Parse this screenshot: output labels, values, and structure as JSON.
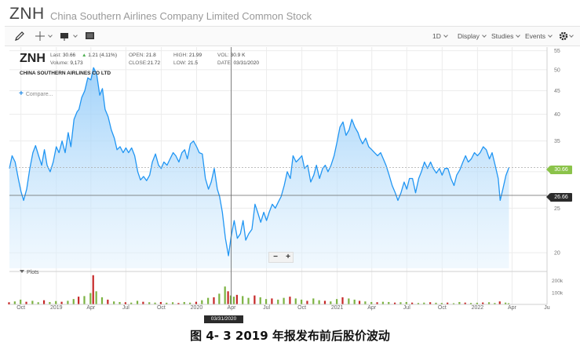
{
  "header": {
    "ticker": "ZNH",
    "company_full": "China Southern Airlines Company Limited Common Stock"
  },
  "toolbar": {
    "draw_icon": "pencil-icon",
    "crosshair_icon": "crosshair-icon",
    "chart_style_icon": "candle-chart-icon",
    "fullscreen_icon": "square-icon",
    "range": "1D",
    "display": "Display",
    "studies": "Studies",
    "events": "Events",
    "settings_icon": "gear-icon"
  },
  "quote": {
    "ticker": "ZNH",
    "company": "CHINA SOUTHERN AIRLINES CO LTD",
    "last_label": "Last:",
    "last_value": "30.66",
    "change": "1.21 (4.11%)",
    "volume_label": "Volume:",
    "volume_value": "9,173",
    "open_label": "OPEN:",
    "open_value": "21.8",
    "close_label": "CLOSE:",
    "close_value": "21.72",
    "high_label": "HIGH:",
    "high_value": "21.99",
    "low_label": "LOW:",
    "low_value": "21.5",
    "vol_label": "VOL:",
    "vol_value": "30.9 K",
    "date_label": "DATE:",
    "date_value": "03/31/2020",
    "change_color": "#4caf50"
  },
  "compare_label": "Compare...",
  "zoom": {
    "minus": "−",
    "plus": "+"
  },
  "plots_label": "Plots",
  "last_price_tag": "30.66",
  "cursor_price_tag": "26.66",
  "cursor_date_flag": "03/31/2020",
  "caption": "图 4- 3 2019 年报发布前后股价波动",
  "colors": {
    "line": "#2196f3",
    "area_top": "#bbdefb",
    "volume_up": "#7cb342",
    "volume_down": "#c62828",
    "last_tag": "#8bc34a"
  },
  "chart_data": {
    "type": "area",
    "y_scale": "log",
    "y_ticks": [
      20,
      25,
      30,
      35,
      40,
      45,
      50,
      55
    ],
    "ylim": [
      18.5,
      56
    ],
    "x_ticks": [
      {
        "date": "2018-10-01",
        "label": "Oct"
      },
      {
        "date": "2019-01-01",
        "label": "2019"
      },
      {
        "date": "2019-04-01",
        "label": "Apr"
      },
      {
        "date": "2019-07-01",
        "label": "Jul"
      },
      {
        "date": "2019-10-01",
        "label": "Oct"
      },
      {
        "date": "2020-01-01",
        "label": "2020"
      },
      {
        "date": "2020-04-01",
        "label": "Apr"
      },
      {
        "date": "2020-07-01",
        "label": "Jul"
      },
      {
        "date": "2020-10-01",
        "label": "Oct"
      },
      {
        "date": "2021-01-01",
        "label": "2021"
      },
      {
        "date": "2021-04-01",
        "label": "Apr"
      },
      {
        "date": "2021-07-01",
        "label": "Jul"
      },
      {
        "date": "2021-10-01",
        "label": "Oct"
      },
      {
        "date": "2022-01-01",
        "label": "2022"
      },
      {
        "date": "2022-04-01",
        "label": "Apr"
      },
      {
        "date": "2022-07-01",
        "label": "Ju"
      }
    ],
    "xlim": [
      "2018-09-01",
      "2022-07-01"
    ],
    "series": [
      {
        "points": [
          [
            "2018-09-01",
            30.5
          ],
          [
            "2018-09-08",
            32.5
          ],
          [
            "2018-09-16",
            31.5
          ],
          [
            "2018-09-24",
            29
          ],
          [
            "2018-10-01",
            27.2
          ],
          [
            "2018-10-08",
            26
          ],
          [
            "2018-10-16",
            27.5
          ],
          [
            "2018-10-24",
            30.5
          ],
          [
            "2018-11-01",
            33
          ],
          [
            "2018-11-08",
            34.2
          ],
          [
            "2018-11-16",
            32.5
          ],
          [
            "2018-11-24",
            31
          ],
          [
            "2018-12-01",
            33.5
          ],
          [
            "2018-12-08",
            31
          ],
          [
            "2018-12-16",
            30
          ],
          [
            "2018-12-24",
            31.5
          ],
          [
            "2019-01-01",
            34
          ],
          [
            "2019-01-08",
            33
          ],
          [
            "2019-01-16",
            35
          ],
          [
            "2019-01-24",
            33
          ],
          [
            "2019-02-01",
            36.5
          ],
          [
            "2019-02-08",
            34
          ],
          [
            "2019-02-16",
            39
          ],
          [
            "2019-02-24",
            40.5
          ],
          [
            "2019-03-01",
            41
          ],
          [
            "2019-03-08",
            43.5
          ],
          [
            "2019-03-16",
            45
          ],
          [
            "2019-03-24",
            48
          ],
          [
            "2019-04-01",
            47.5
          ],
          [
            "2019-04-08",
            50.5
          ],
          [
            "2019-04-16",
            49
          ],
          [
            "2019-04-24",
            44
          ],
          [
            "2019-05-01",
            45.5
          ],
          [
            "2019-05-08",
            41
          ],
          [
            "2019-05-16",
            39.5
          ],
          [
            "2019-05-24",
            37
          ],
          [
            "2019-06-01",
            35.5
          ],
          [
            "2019-06-08",
            33.5
          ],
          [
            "2019-06-16",
            34
          ],
          [
            "2019-06-24",
            33
          ],
          [
            "2019-07-01",
            33.8
          ],
          [
            "2019-07-08",
            33
          ],
          [
            "2019-07-16",
            33.8
          ],
          [
            "2019-07-24",
            32.5
          ],
          [
            "2019-08-01",
            30
          ],
          [
            "2019-08-08",
            28.8
          ],
          [
            "2019-08-16",
            29.3
          ],
          [
            "2019-08-24",
            28.7
          ],
          [
            "2019-09-01",
            29.5
          ],
          [
            "2019-09-08",
            31.5
          ],
          [
            "2019-09-16",
            32.8
          ],
          [
            "2019-09-24",
            31
          ],
          [
            "2019-10-01",
            30.5
          ],
          [
            "2019-10-08",
            31.5
          ],
          [
            "2019-10-16",
            31
          ],
          [
            "2019-10-24",
            32
          ],
          [
            "2019-11-01",
            33
          ],
          [
            "2019-11-08",
            32.5
          ],
          [
            "2019-11-16",
            31.5
          ],
          [
            "2019-11-24",
            33
          ],
          [
            "2019-12-01",
            33.5
          ],
          [
            "2019-12-08",
            32
          ],
          [
            "2019-12-16",
            34.5
          ],
          [
            "2019-12-24",
            35
          ],
          [
            "2020-01-01",
            34
          ],
          [
            "2020-01-08",
            33
          ],
          [
            "2020-01-16",
            32.8
          ],
          [
            "2020-01-24",
            29
          ],
          [
            "2020-02-01",
            27.5
          ],
          [
            "2020-02-08",
            28.5
          ],
          [
            "2020-02-16",
            30.5
          ],
          [
            "2020-02-24",
            27.5
          ],
          [
            "2020-03-01",
            26.5
          ],
          [
            "2020-03-08",
            24.5
          ],
          [
            "2020-03-16",
            21.5
          ],
          [
            "2020-03-24",
            19.7
          ],
          [
            "2020-03-31",
            21.7
          ],
          [
            "2020-04-08",
            23.5
          ],
          [
            "2020-04-16",
            21.5
          ],
          [
            "2020-04-24",
            22
          ],
          [
            "2020-05-01",
            23.5
          ],
          [
            "2020-05-08",
            21.3
          ],
          [
            "2020-05-16",
            22
          ],
          [
            "2020-05-24",
            22.5
          ],
          [
            "2020-06-01",
            25.5
          ],
          [
            "2020-06-08",
            24.5
          ],
          [
            "2020-06-16",
            23.3
          ],
          [
            "2020-06-24",
            24.5
          ],
          [
            "2020-07-01",
            23.5
          ],
          [
            "2020-07-08",
            24.5
          ],
          [
            "2020-07-16",
            25.5
          ],
          [
            "2020-07-24",
            25
          ],
          [
            "2020-08-01",
            25.8
          ],
          [
            "2020-08-08",
            26.5
          ],
          [
            "2020-08-16",
            28
          ],
          [
            "2020-08-24",
            30
          ],
          [
            "2020-09-01",
            29
          ],
          [
            "2020-09-08",
            32.5
          ],
          [
            "2020-09-16",
            31.5
          ],
          [
            "2020-09-24",
            32
          ],
          [
            "2020-10-01",
            32.5
          ],
          [
            "2020-10-08",
            30.5
          ],
          [
            "2020-10-16",
            31
          ],
          [
            "2020-10-24",
            28.5
          ],
          [
            "2020-11-01",
            29.5
          ],
          [
            "2020-11-08",
            31
          ],
          [
            "2020-11-16",
            29
          ],
          [
            "2020-11-24",
            30.5
          ],
          [
            "2020-12-01",
            31
          ],
          [
            "2020-12-08",
            30
          ],
          [
            "2020-12-16",
            31
          ],
          [
            "2020-12-24",
            32.5
          ],
          [
            "2021-01-01",
            35
          ],
          [
            "2021-01-08",
            37.5
          ],
          [
            "2021-01-16",
            38.5
          ],
          [
            "2021-01-24",
            36
          ],
          [
            "2021-02-01",
            37
          ],
          [
            "2021-02-08",
            39
          ],
          [
            "2021-02-16",
            37.5
          ],
          [
            "2021-02-24",
            36.5
          ],
          [
            "2021-03-01",
            35.5
          ],
          [
            "2021-03-08",
            34.5
          ],
          [
            "2021-03-16",
            35.5
          ],
          [
            "2021-03-24",
            34
          ],
          [
            "2021-04-01",
            33.5
          ],
          [
            "2021-04-08",
            33
          ],
          [
            "2021-04-16",
            32.5
          ],
          [
            "2021-04-24",
            33
          ],
          [
            "2021-05-01",
            32
          ],
          [
            "2021-05-08",
            31
          ],
          [
            "2021-05-16",
            29.5
          ],
          [
            "2021-05-24",
            28
          ],
          [
            "2021-06-01",
            27
          ],
          [
            "2021-06-08",
            26
          ],
          [
            "2021-06-16",
            27
          ],
          [
            "2021-06-24",
            28.5
          ],
          [
            "2021-07-01",
            27.5
          ],
          [
            "2021-07-08",
            29
          ],
          [
            "2021-07-16",
            29
          ],
          [
            "2021-07-24",
            27
          ],
          [
            "2021-08-01",
            29
          ],
          [
            "2021-08-08",
            30
          ],
          [
            "2021-08-16",
            31.5
          ],
          [
            "2021-08-24",
            30.5
          ],
          [
            "2021-09-01",
            31.5
          ],
          [
            "2021-09-08",
            30.5
          ],
          [
            "2021-09-16",
            29.8
          ],
          [
            "2021-09-24",
            30.5
          ],
          [
            "2021-10-01",
            29.5
          ],
          [
            "2021-10-08",
            30.5
          ],
          [
            "2021-10-16",
            30.5
          ],
          [
            "2021-10-24",
            29
          ],
          [
            "2021-11-01",
            28
          ],
          [
            "2021-11-08",
            29.5
          ],
          [
            "2021-11-16",
            30.3
          ],
          [
            "2021-11-24",
            31.5
          ],
          [
            "2021-12-01",
            32.5
          ],
          [
            "2021-12-08",
            31.5
          ],
          [
            "2021-12-16",
            32
          ],
          [
            "2021-12-24",
            33
          ],
          [
            "2022-01-01",
            32.5
          ],
          [
            "2022-01-08",
            33
          ],
          [
            "2022-01-16",
            34
          ],
          [
            "2022-01-24",
            33.5
          ],
          [
            "2022-02-01",
            32
          ],
          [
            "2022-02-08",
            33
          ],
          [
            "2022-02-16",
            31
          ],
          [
            "2022-02-24",
            29
          ],
          [
            "2022-03-01",
            26
          ],
          [
            "2022-03-08",
            27.5
          ],
          [
            "2022-03-16",
            29.45
          ],
          [
            "2022-03-24",
            30.66
          ]
        ]
      }
    ],
    "volume_ticks": [
      "100k",
      "200k"
    ],
    "volume": [
      [
        "2018-09-01",
        18
      ],
      [
        "2018-09-16",
        25
      ],
      [
        "2018-10-01",
        40
      ],
      [
        "2018-10-16",
        22
      ],
      [
        "2018-11-01",
        30
      ],
      [
        "2018-11-16",
        18
      ],
      [
        "2018-12-01",
        35
      ],
      [
        "2018-12-16",
        20
      ],
      [
        "2019-01-01",
        28
      ],
      [
        "2019-01-16",
        22
      ],
      [
        "2019-02-01",
        30
      ],
      [
        "2019-02-16",
        45
      ],
      [
        "2019-03-01",
        65
      ],
      [
        "2019-03-16",
        70
      ],
      [
        "2019-04-01",
        95
      ],
      [
        "2019-04-08",
        245
      ],
      [
        "2019-04-16",
        110
      ],
      [
        "2019-05-01",
        60
      ],
      [
        "2019-05-16",
        40
      ],
      [
        "2019-06-01",
        25
      ],
      [
        "2019-06-16",
        20
      ],
      [
        "2019-07-01",
        18
      ],
      [
        "2019-07-16",
        15
      ],
      [
        "2019-08-01",
        30
      ],
      [
        "2019-08-16",
        22
      ],
      [
        "2019-09-01",
        18
      ],
      [
        "2019-09-16",
        15
      ],
      [
        "2019-10-01",
        20
      ],
      [
        "2019-10-16",
        14
      ],
      [
        "2019-11-01",
        18
      ],
      [
        "2019-11-16",
        12
      ],
      [
        "2019-12-01",
        20
      ],
      [
        "2019-12-16",
        15
      ],
      [
        "2020-01-01",
        22
      ],
      [
        "2020-01-16",
        35
      ],
      [
        "2020-02-01",
        55
      ],
      [
        "2020-02-16",
        60
      ],
      [
        "2020-03-01",
        90
      ],
      [
        "2020-03-16",
        150
      ],
      [
        "2020-03-24",
        110
      ],
      [
        "2020-03-31",
        75
      ],
      [
        "2020-04-08",
        65
      ],
      [
        "2020-04-16",
        80
      ],
      [
        "2020-05-01",
        70
      ],
      [
        "2020-05-16",
        55
      ],
      [
        "2020-06-01",
        75
      ],
      [
        "2020-06-16",
        60
      ],
      [
        "2020-07-01",
        45
      ],
      [
        "2020-07-16",
        50
      ],
      [
        "2020-08-01",
        40
      ],
      [
        "2020-08-16",
        55
      ],
      [
        "2020-09-01",
        65
      ],
      [
        "2020-09-16",
        50
      ],
      [
        "2020-10-01",
        40
      ],
      [
        "2020-10-16",
        30
      ],
      [
        "2020-11-01",
        50
      ],
      [
        "2020-11-16",
        35
      ],
      [
        "2020-12-01",
        30
      ],
      [
        "2020-12-16",
        25
      ],
      [
        "2021-01-01",
        45
      ],
      [
        "2021-01-16",
        60
      ],
      [
        "2021-02-01",
        50
      ],
      [
        "2021-02-16",
        40
      ],
      [
        "2021-03-01",
        30
      ],
      [
        "2021-03-16",
        25
      ],
      [
        "2021-04-01",
        20
      ],
      [
        "2021-04-16",
        18
      ],
      [
        "2021-05-01",
        22
      ],
      [
        "2021-05-16",
        20
      ],
      [
        "2021-06-01",
        15
      ],
      [
        "2021-06-16",
        18
      ],
      [
        "2021-07-01",
        20
      ],
      [
        "2021-07-16",
        15
      ],
      [
        "2021-08-01",
        12
      ],
      [
        "2021-08-16",
        15
      ],
      [
        "2021-09-01",
        18
      ],
      [
        "2021-09-16",
        14
      ],
      [
        "2021-10-01",
        12
      ],
      [
        "2021-10-16",
        15
      ],
      [
        "2021-11-01",
        10
      ],
      [
        "2021-11-16",
        20
      ],
      [
        "2021-12-01",
        15
      ],
      [
        "2021-12-16",
        12
      ],
      [
        "2022-01-01",
        14
      ],
      [
        "2022-01-16",
        16
      ],
      [
        "2022-02-01",
        18
      ],
      [
        "2022-02-16",
        12
      ],
      [
        "2022-03-01",
        25
      ],
      [
        "2022-03-16",
        15
      ],
      [
        "2022-03-24",
        10
      ]
    ]
  }
}
